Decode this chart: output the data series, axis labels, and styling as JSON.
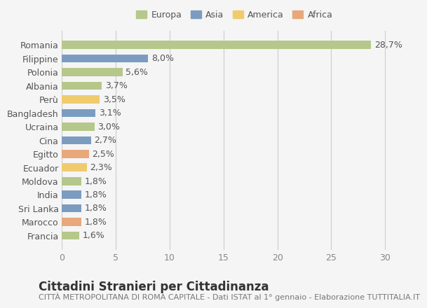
{
  "countries": [
    "Romania",
    "Filippine",
    "Polonia",
    "Albania",
    "Perù",
    "Bangladesh",
    "Ucraina",
    "Cina",
    "Egitto",
    "Ecuador",
    "Moldova",
    "India",
    "Sri Lanka",
    "Marocco",
    "Francia"
  ],
  "values": [
    28.7,
    8.0,
    5.6,
    3.7,
    3.5,
    3.1,
    3.0,
    2.7,
    2.5,
    2.3,
    1.8,
    1.8,
    1.8,
    1.8,
    1.6
  ],
  "labels": [
    "28,7%",
    "8,0%",
    "5,6%",
    "3,7%",
    "3,5%",
    "3,1%",
    "3,0%",
    "2,7%",
    "2,5%",
    "2,3%",
    "1,8%",
    "1,8%",
    "1,8%",
    "1,8%",
    "1,6%"
  ],
  "continents": [
    "Europa",
    "Asia",
    "Europa",
    "Europa",
    "America",
    "Asia",
    "Europa",
    "Asia",
    "Africa",
    "America",
    "Europa",
    "Asia",
    "Asia",
    "Africa",
    "Europa"
  ],
  "colors": {
    "Europa": "#b5c78a",
    "Asia": "#7b9cbf",
    "America": "#f0cb6e",
    "Africa": "#e8a87c"
  },
  "legend_order": [
    "Europa",
    "Asia",
    "America",
    "Africa"
  ],
  "background_color": "#f5f5f5",
  "title": "Cittadini Stranieri per Cittadinanza",
  "subtitle": "CITTÀ METROPOLITANA DI ROMA CAPITALE - Dati ISTAT al 1° gennaio - Elaborazione TUTTITALIA.IT",
  "xlim": [
    0,
    32
  ],
  "xticks": [
    0,
    5,
    10,
    15,
    20,
    25,
    30
  ],
  "bar_height": 0.6,
  "label_fontsize": 9,
  "tick_fontsize": 9,
  "title_fontsize": 12,
  "subtitle_fontsize": 8
}
